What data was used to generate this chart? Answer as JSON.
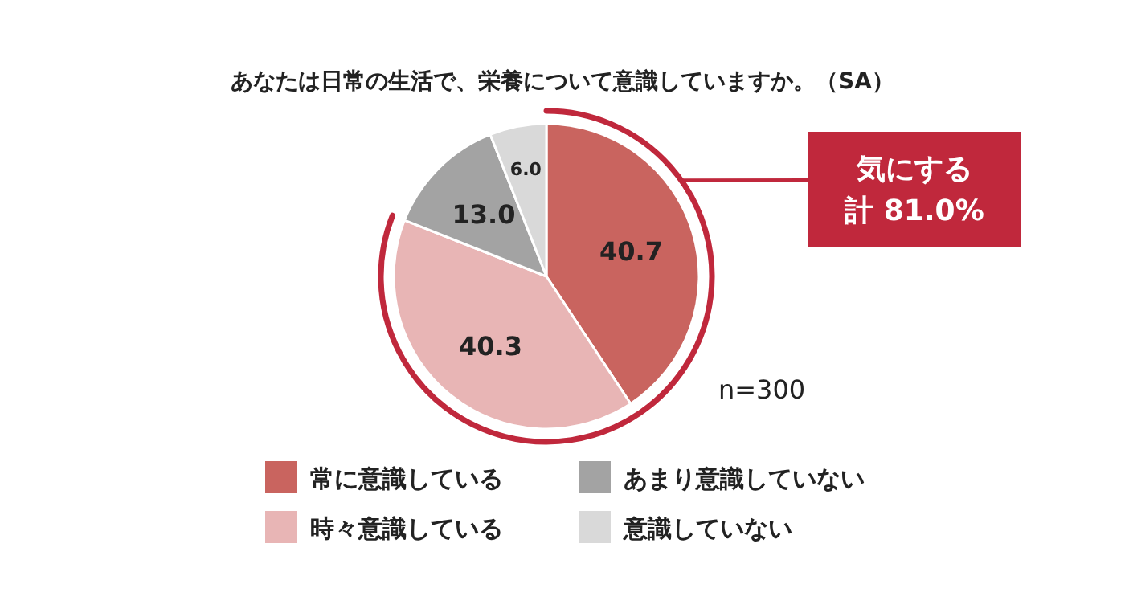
{
  "chart_data": {
    "type": "pie",
    "title": "あなたは日常の生活で、栄養について意識していますか。（SA）",
    "categories": [
      "常に意識している",
      "時々意識している",
      "あまり意識していない",
      "意識していない"
    ],
    "values": [
      40.7,
      40.3,
      13.0,
      6.0
    ],
    "value_labels": [
      "40.7",
      "40.3",
      "13.0",
      "6.0"
    ],
    "colors": [
      "#c9645f",
      "#e8b5b5",
      "#a3a3a3",
      "#d9d9d9"
    ],
    "legend": "bottom",
    "annotations": [
      "気にする",
      "計 81.0%",
      "n=300"
    ]
  }
}
